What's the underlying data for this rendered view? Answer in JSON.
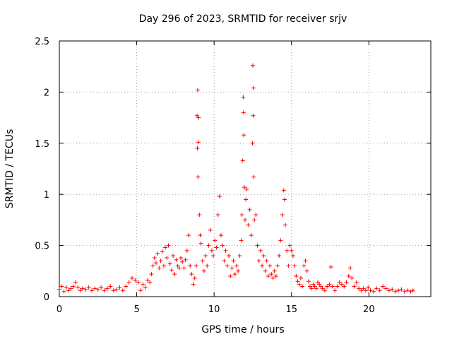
{
  "chart_data": {
    "type": "scatter",
    "title": "Day 296 of 2023, SRMTID for receiver srjv",
    "xlabel": "GPS time / hours",
    "ylabel": "SRMTID / TECUs",
    "xlim": [
      0,
      24
    ],
    "ylim": [
      0,
      2.5
    ],
    "xticks": [
      0,
      5,
      10,
      15,
      20
    ],
    "xtick_labels": [
      "0",
      "5",
      "10",
      "15",
      "20"
    ],
    "yticks": [
      0,
      0.5,
      1,
      1.5,
      2,
      2.5
    ],
    "ytick_labels": [
      "0",
      "0.5",
      "1",
      "1.5",
      "2",
      "2.5"
    ],
    "grid": true,
    "marker": "+",
    "color": "#ff0000",
    "series": [
      {
        "name": "SRMTID",
        "points": [
          [
            0.0,
            0.07
          ],
          [
            0.15,
            0.1
          ],
          [
            0.3,
            0.05
          ],
          [
            0.45,
            0.09
          ],
          [
            0.6,
            0.06
          ],
          [
            0.75,
            0.08
          ],
          [
            0.9,
            0.1
          ],
          [
            1.05,
            0.14
          ],
          [
            1.2,
            0.09
          ],
          [
            1.35,
            0.06
          ],
          [
            1.5,
            0.08
          ],
          [
            1.7,
            0.07
          ],
          [
            1.9,
            0.09
          ],
          [
            2.1,
            0.06
          ],
          [
            2.3,
            0.08
          ],
          [
            2.5,
            0.07
          ],
          [
            2.7,
            0.09
          ],
          [
            2.9,
            0.06
          ],
          [
            3.1,
            0.08
          ],
          [
            3.3,
            0.1
          ],
          [
            3.5,
            0.06
          ],
          [
            3.7,
            0.07
          ],
          [
            3.9,
            0.09
          ],
          [
            4.1,
            0.06
          ],
          [
            4.3,
            0.1
          ],
          [
            4.5,
            0.14
          ],
          [
            4.7,
            0.18
          ],
          [
            4.9,
            0.16
          ],
          [
            5.1,
            0.14
          ],
          [
            5.25,
            0.06
          ],
          [
            5.4,
            0.12
          ],
          [
            5.55,
            0.09
          ],
          [
            5.7,
            0.16
          ],
          [
            5.85,
            0.14
          ],
          [
            5.95,
            0.22
          ],
          [
            6.05,
            0.3
          ],
          [
            6.15,
            0.38
          ],
          [
            6.25,
            0.33
          ],
          [
            6.35,
            0.42
          ],
          [
            6.45,
            0.28
          ],
          [
            6.55,
            0.35
          ],
          [
            6.65,
            0.44
          ],
          [
            6.75,
            0.3
          ],
          [
            6.85,
            0.48
          ],
          [
            6.95,
            0.38
          ],
          [
            7.05,
            0.5
          ],
          [
            7.15,
            0.32
          ],
          [
            7.25,
            0.26
          ],
          [
            7.35,
            0.4
          ],
          [
            7.45,
            0.22
          ],
          [
            7.55,
            0.36
          ],
          [
            7.65,
            0.3
          ],
          [
            7.75,
            0.28
          ],
          [
            7.85,
            0.38
          ],
          [
            7.95,
            0.34
          ],
          [
            8.05,
            0.28
          ],
          [
            8.15,
            0.36
          ],
          [
            8.25,
            0.45
          ],
          [
            8.35,
            0.6
          ],
          [
            8.45,
            0.3
          ],
          [
            8.55,
            0.22
          ],
          [
            8.65,
            0.12
          ],
          [
            8.75,
            0.18
          ],
          [
            8.85,
            0.3
          ],
          [
            8.9,
            1.77
          ],
          [
            8.92,
            1.45
          ],
          [
            8.94,
            2.02
          ],
          [
            8.96,
            1.17
          ],
          [
            8.98,
            1.51
          ],
          [
            9.0,
            1.75
          ],
          [
            9.05,
            0.8
          ],
          [
            9.1,
            0.6
          ],
          [
            9.15,
            0.52
          ],
          [
            9.25,
            0.35
          ],
          [
            9.35,
            0.25
          ],
          [
            9.45,
            0.4
          ],
          [
            9.55,
            0.3
          ],
          [
            9.65,
            0.5
          ],
          [
            9.75,
            0.65
          ],
          [
            9.85,
            0.45
          ],
          [
            9.95,
            0.4
          ],
          [
            10.05,
            0.55
          ],
          [
            10.15,
            0.48
          ],
          [
            10.25,
            0.8
          ],
          [
            10.35,
            0.98
          ],
          [
            10.45,
            0.6
          ],
          [
            10.55,
            0.5
          ],
          [
            10.65,
            0.35
          ],
          [
            10.75,
            0.45
          ],
          [
            10.85,
            0.3
          ],
          [
            10.95,
            0.4
          ],
          [
            11.05,
            0.2
          ],
          [
            11.15,
            0.28
          ],
          [
            11.25,
            0.35
          ],
          [
            11.35,
            0.22
          ],
          [
            11.45,
            0.3
          ],
          [
            11.55,
            0.25
          ],
          [
            11.65,
            0.4
          ],
          [
            11.75,
            0.55
          ],
          [
            11.8,
            0.8
          ],
          [
            11.85,
            1.33
          ],
          [
            11.88,
            1.95
          ],
          [
            11.9,
            1.8
          ],
          [
            11.92,
            1.58
          ],
          [
            11.95,
            1.07
          ],
          [
            12.0,
            0.75
          ],
          [
            12.05,
            0.95
          ],
          [
            12.1,
            1.05
          ],
          [
            12.2,
            0.7
          ],
          [
            12.3,
            0.85
          ],
          [
            12.4,
            0.6
          ],
          [
            12.48,
            1.5
          ],
          [
            12.5,
            2.26
          ],
          [
            12.52,
            1.77
          ],
          [
            12.54,
            2.04
          ],
          [
            12.56,
            1.17
          ],
          [
            12.6,
            0.75
          ],
          [
            12.7,
            0.8
          ],
          [
            12.8,
            0.5
          ],
          [
            12.9,
            0.35
          ],
          [
            13.0,
            0.45
          ],
          [
            13.1,
            0.3
          ],
          [
            13.2,
            0.4
          ],
          [
            13.3,
            0.25
          ],
          [
            13.4,
            0.35
          ],
          [
            13.5,
            0.2
          ],
          [
            13.6,
            0.3
          ],
          [
            13.7,
            0.22
          ],
          [
            13.8,
            0.18
          ],
          [
            13.9,
            0.25
          ],
          [
            14.0,
            0.2
          ],
          [
            14.1,
            0.3
          ],
          [
            14.2,
            0.4
          ],
          [
            14.3,
            0.55
          ],
          [
            14.4,
            0.8
          ],
          [
            14.5,
            1.04
          ],
          [
            14.55,
            0.95
          ],
          [
            14.6,
            0.7
          ],
          [
            14.7,
            0.45
          ],
          [
            14.8,
            0.3
          ],
          [
            14.9,
            0.5
          ],
          [
            15.0,
            0.45
          ],
          [
            15.1,
            0.4
          ],
          [
            15.2,
            0.3
          ],
          [
            15.3,
            0.2
          ],
          [
            15.4,
            0.15
          ],
          [
            15.5,
            0.12
          ],
          [
            15.6,
            0.18
          ],
          [
            15.7,
            0.1
          ],
          [
            15.8,
            0.3
          ],
          [
            15.9,
            0.35
          ],
          [
            16.0,
            0.25
          ],
          [
            16.1,
            0.15
          ],
          [
            16.2,
            0.1
          ],
          [
            16.3,
            0.08
          ],
          [
            16.4,
            0.12
          ],
          [
            16.5,
            0.1
          ],
          [
            16.6,
            0.08
          ],
          [
            16.7,
            0.14
          ],
          [
            16.8,
            0.12
          ],
          [
            16.9,
            0.1
          ],
          [
            17.0,
            0.08
          ],
          [
            17.15,
            0.06
          ],
          [
            17.3,
            0.1
          ],
          [
            17.45,
            0.12
          ],
          [
            17.55,
            0.29
          ],
          [
            17.65,
            0.1
          ],
          [
            17.8,
            0.06
          ],
          [
            17.95,
            0.1
          ],
          [
            18.1,
            0.14
          ],
          [
            18.25,
            0.12
          ],
          [
            18.4,
            0.1
          ],
          [
            18.55,
            0.14
          ],
          [
            18.7,
            0.2
          ],
          [
            18.8,
            0.28
          ],
          [
            18.9,
            0.18
          ],
          [
            19.05,
            0.1
          ],
          [
            19.2,
            0.14
          ],
          [
            19.35,
            0.08
          ],
          [
            19.5,
            0.06
          ],
          [
            19.65,
            0.08
          ],
          [
            19.8,
            0.06
          ],
          [
            19.95,
            0.09
          ],
          [
            20.1,
            0.06
          ],
          [
            20.3,
            0.05
          ],
          [
            20.5,
            0.08
          ],
          [
            20.7,
            0.06
          ],
          [
            20.9,
            0.1
          ],
          [
            21.1,
            0.08
          ],
          [
            21.3,
            0.06
          ],
          [
            21.5,
            0.07
          ],
          [
            21.7,
            0.05
          ],
          [
            21.9,
            0.06
          ],
          [
            22.1,
            0.07
          ],
          [
            22.3,
            0.05
          ],
          [
            22.5,
            0.06
          ],
          [
            22.7,
            0.05
          ],
          [
            22.85,
            0.06
          ]
        ]
      }
    ]
  }
}
